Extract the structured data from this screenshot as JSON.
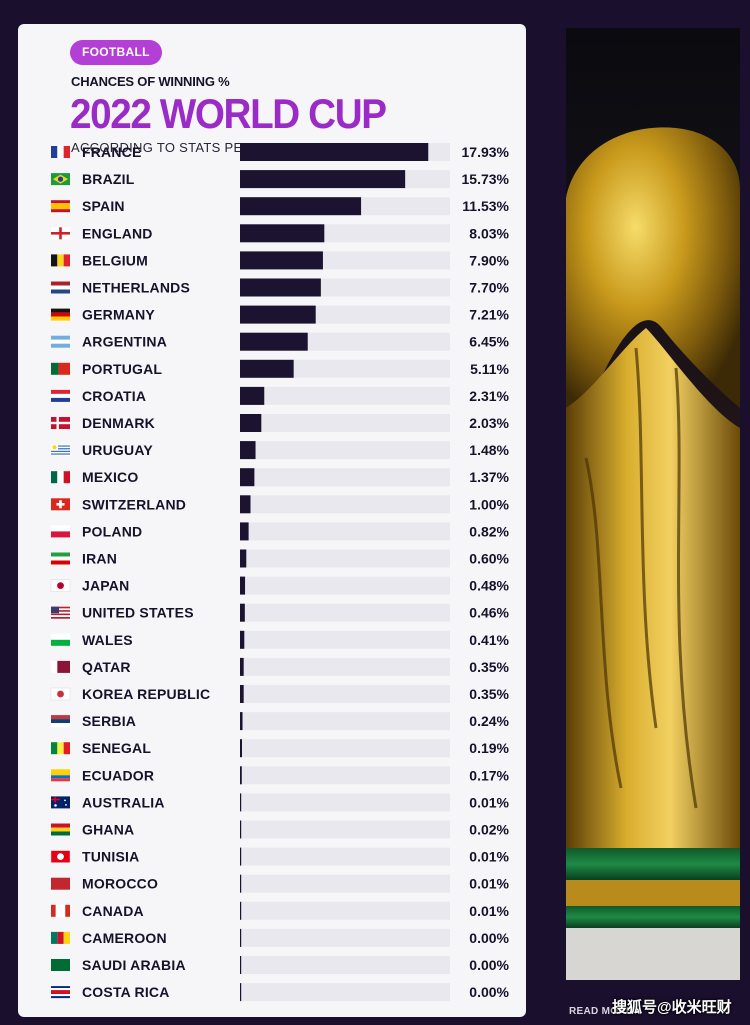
{
  "badge": "FOOTBALL",
  "subtitle": "CHANCES OF WINNING %",
  "title": "2022 WORLD CUP",
  "model_note": "ACCORDING TO STATS PERFORM'S AI MODEL",
  "footer_note": "READ MORE",
  "watermark": "搜狐号@收米旺财",
  "colors": {
    "accent": "#9a2bc6",
    "badge": "#b33fd6",
    "bar": "#1c1330",
    "track": "#e9e8ee",
    "card": "#f6f6f8",
    "background": "#1b0f2e"
  },
  "chart_data": {
    "type": "bar",
    "orientation": "horizontal",
    "title": "2022 WORLD CUP",
    "xlim": [
      0,
      20
    ],
    "categories": [
      "FRANCE",
      "BRAZIL",
      "SPAIN",
      "ENGLAND",
      "BELGIUM",
      "NETHERLANDS",
      "GERMANY",
      "ARGENTINA",
      "PORTUGAL",
      "CROATIA",
      "DENMARK",
      "URUGUAY",
      "MEXICO",
      "SWITZERLAND",
      "POLAND",
      "IRAN",
      "JAPAN",
      "UNITED STATES",
      "WALES",
      "QATAR",
      "KOREA REPUBLIC",
      "SERBIA",
      "SENEGAL",
      "ECUADOR",
      "AUSTRALIA",
      "GHANA",
      "TUNISIA",
      "MOROCCO",
      "CANADA",
      "CAMEROON",
      "SAUDI ARABIA",
      "COSTA RICA"
    ],
    "values": [
      17.93,
      15.73,
      11.53,
      8.03,
      7.9,
      7.7,
      7.21,
      6.45,
      5.11,
      2.31,
      2.03,
      1.48,
      1.37,
      1.0,
      0.82,
      0.6,
      0.48,
      0.46,
      0.41,
      0.35,
      0.35,
      0.24,
      0.19,
      0.17,
      0.01,
      0.02,
      0.01,
      0.01,
      0.01,
      0.0,
      0.0,
      0.0
    ],
    "value_labels": [
      "17.93%",
      "15.73%",
      "11.53%",
      "8.03%",
      "7.90%",
      "7.70%",
      "7.21%",
      "6.45%",
      "5.11%",
      "2.31%",
      "2.03%",
      "1.48%",
      "1.37%",
      "1.00%",
      "0.82%",
      "0.60%",
      "0.48%",
      "0.46%",
      "0.41%",
      "0.35%",
      "0.35%",
      "0.24%",
      "0.19%",
      "0.17%",
      "0.01%",
      "0.02%",
      "0.01%",
      "0.01%",
      "0.01%",
      "0.00%",
      "0.00%",
      "0.00%"
    ],
    "flags": [
      {
        "type": "v",
        "colors": [
          "#1d3f9a",
          "#ffffff",
          "#e0242f"
        ]
      },
      {
        "type": "diamond",
        "colors": [
          "#1a9c3e",
          "#f7d51f",
          "#1d3f9a"
        ]
      },
      {
        "type": "h3",
        "colors": [
          "#c8102e",
          "#f8c300",
          "#c8102e"
        ],
        "ratio": [
          1,
          2,
          1
        ]
      },
      {
        "type": "cross",
        "colors": [
          "#ffffff",
          "#d0202c"
        ]
      },
      {
        "type": "v",
        "colors": [
          "#141414",
          "#f7d51f",
          "#e0242f"
        ]
      },
      {
        "type": "h",
        "colors": [
          "#b01e2b",
          "#ffffff",
          "#21468b"
        ]
      },
      {
        "type": "h",
        "colors": [
          "#141414",
          "#dd0000",
          "#ffce00"
        ]
      },
      {
        "type": "h",
        "colors": [
          "#74acdf",
          "#ffffff",
          "#74acdf"
        ]
      },
      {
        "type": "v",
        "colors": [
          "#046a38",
          "#da291c"
        ],
        "ratio": [
          2,
          3
        ]
      },
      {
        "type": "h",
        "colors": [
          "#e0242f",
          "#ffffff",
          "#1d3f9a"
        ]
      },
      {
        "type": "nordic",
        "colors": [
          "#c8102e",
          "#ffffff"
        ]
      },
      {
        "type": "stripes",
        "colors": [
          "#ffffff",
          "#3a75c4"
        ]
      },
      {
        "type": "v",
        "colors": [
          "#006847",
          "#ffffff",
          "#ce1126"
        ]
      },
      {
        "type": "plus",
        "colors": [
          "#da291c",
          "#ffffff"
        ]
      },
      {
        "type": "h",
        "colors": [
          "#ffffff",
          "#dc143c"
        ]
      },
      {
        "type": "h",
        "colors": [
          "#239f40",
          "#ffffff",
          "#da0000"
        ]
      },
      {
        "type": "disc",
        "colors": [
          "#ffffff",
          "#bc002d"
        ]
      },
      {
        "type": "us",
        "colors": [
          "#b22234",
          "#ffffff",
          "#3c3b6e"
        ]
      },
      {
        "type": "h",
        "colors": [
          "#ffffff",
          "#00b140",
          "#c8102e"
        ],
        "ratio": [
          1,
          1,
          0
        ]
      },
      {
        "type": "v",
        "colors": [
          "#ffffff",
          "#8a1538"
        ],
        "ratio": [
          1,
          2
        ]
      },
      {
        "type": "disc",
        "colors": [
          "#ffffff",
          "#cd2e3a"
        ]
      },
      {
        "type": "h",
        "colors": [
          "#c6363c",
          "#0c4076",
          "#ffffff"
        ]
      },
      {
        "type": "v",
        "colors": [
          "#00853f",
          "#fdef42",
          "#e31b23"
        ]
      },
      {
        "type": "h3",
        "colors": [
          "#ffd100",
          "#0072ce",
          "#ef3340"
        ],
        "ratio": [
          2,
          1,
          1
        ]
      },
      {
        "type": "au",
        "colors": [
          "#012169",
          "#ffffff",
          "#e4002b"
        ]
      },
      {
        "type": "h",
        "colors": [
          "#ce1126",
          "#fcd116",
          "#006b3f"
        ]
      },
      {
        "type": "disc",
        "colors": [
          "#e70013",
          "#ffffff"
        ]
      },
      {
        "type": "solid",
        "colors": [
          "#c1272d"
        ]
      },
      {
        "type": "v",
        "colors": [
          "#d52b1e",
          "#ffffff",
          "#d52b1e"
        ],
        "ratio": [
          1,
          2,
          1
        ]
      },
      {
        "type": "v",
        "colors": [
          "#007a5e",
          "#ce1126",
          "#fcd116"
        ]
      },
      {
        "type": "solid",
        "colors": [
          "#006c35"
        ]
      },
      {
        "type": "h3",
        "colors": [
          "#002b7f",
          "#ffffff",
          "#ce1126",
          "#ffffff",
          "#002b7f"
        ],
        "ratio": [
          1,
          1,
          2,
          1,
          1
        ]
      }
    ]
  }
}
